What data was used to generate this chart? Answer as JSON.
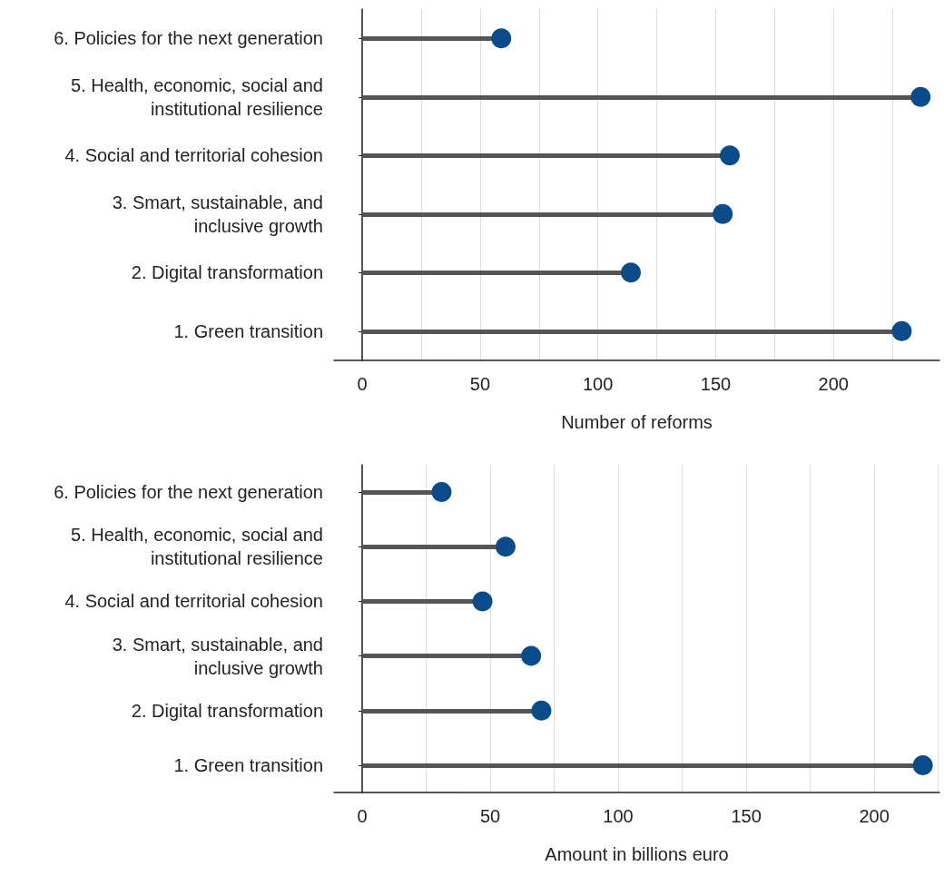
{
  "chart_data": [
    {
      "type": "lollipop",
      "orientation": "horizontal",
      "xlabel": "Number of reforms",
      "categories": [
        "6. Policies for the next generation",
        "5. Health, economic, social and\ninstitutional resilience",
        "4. Social and territorial cohesion",
        "3. Smart, sustainable, and\ninclusive growth",
        "2. Digital transformation",
        "1. Green transition"
      ],
      "series": [
        {
          "color": "#0a4b8c",
          "values": [
            59,
            237,
            156,
            153,
            114,
            229
          ]
        }
      ],
      "xlim": [
        -12,
        245
      ],
      "xticks": [
        0,
        {
          "value": 25,
          "label": null
        },
        50,
        {
          "value": 75,
          "label": null
        },
        100,
        {
          "value": 125,
          "label": null
        },
        150,
        {
          "value": 175,
          "label": null
        },
        200,
        {
          "value": 225,
          "label": null
        }
      ],
      "grid": "x",
      "marker": "circle"
    },
    {
      "type": "lollipop",
      "orientation": "horizontal",
      "xlabel": "Amount in billions euro",
      "categories": [
        "6. Policies for the next generation",
        "5. Health, economic, social and\ninstitutional resilience",
        "4. Social and territorial cohesion",
        "3. Smart, sustainable, and\ninclusive growth",
        "2. Digital transformation",
        "1. Green transition"
      ],
      "series": [
        {
          "color": "#0a4b8c",
          "values": [
            31,
            56,
            47,
            66,
            70,
            219
          ]
        }
      ],
      "xlim": [
        -11,
        225.5
      ],
      "xticks": [
        0,
        {
          "value": 25,
          "label": null
        },
        50,
        {
          "value": 75,
          "label": null
        },
        100,
        {
          "value": 125,
          "label": null
        },
        150,
        {
          "value": 175,
          "label": null
        },
        200,
        {
          "value": 225,
          "label": null
        }
      ],
      "grid": "x",
      "marker": "circle"
    }
  ]
}
